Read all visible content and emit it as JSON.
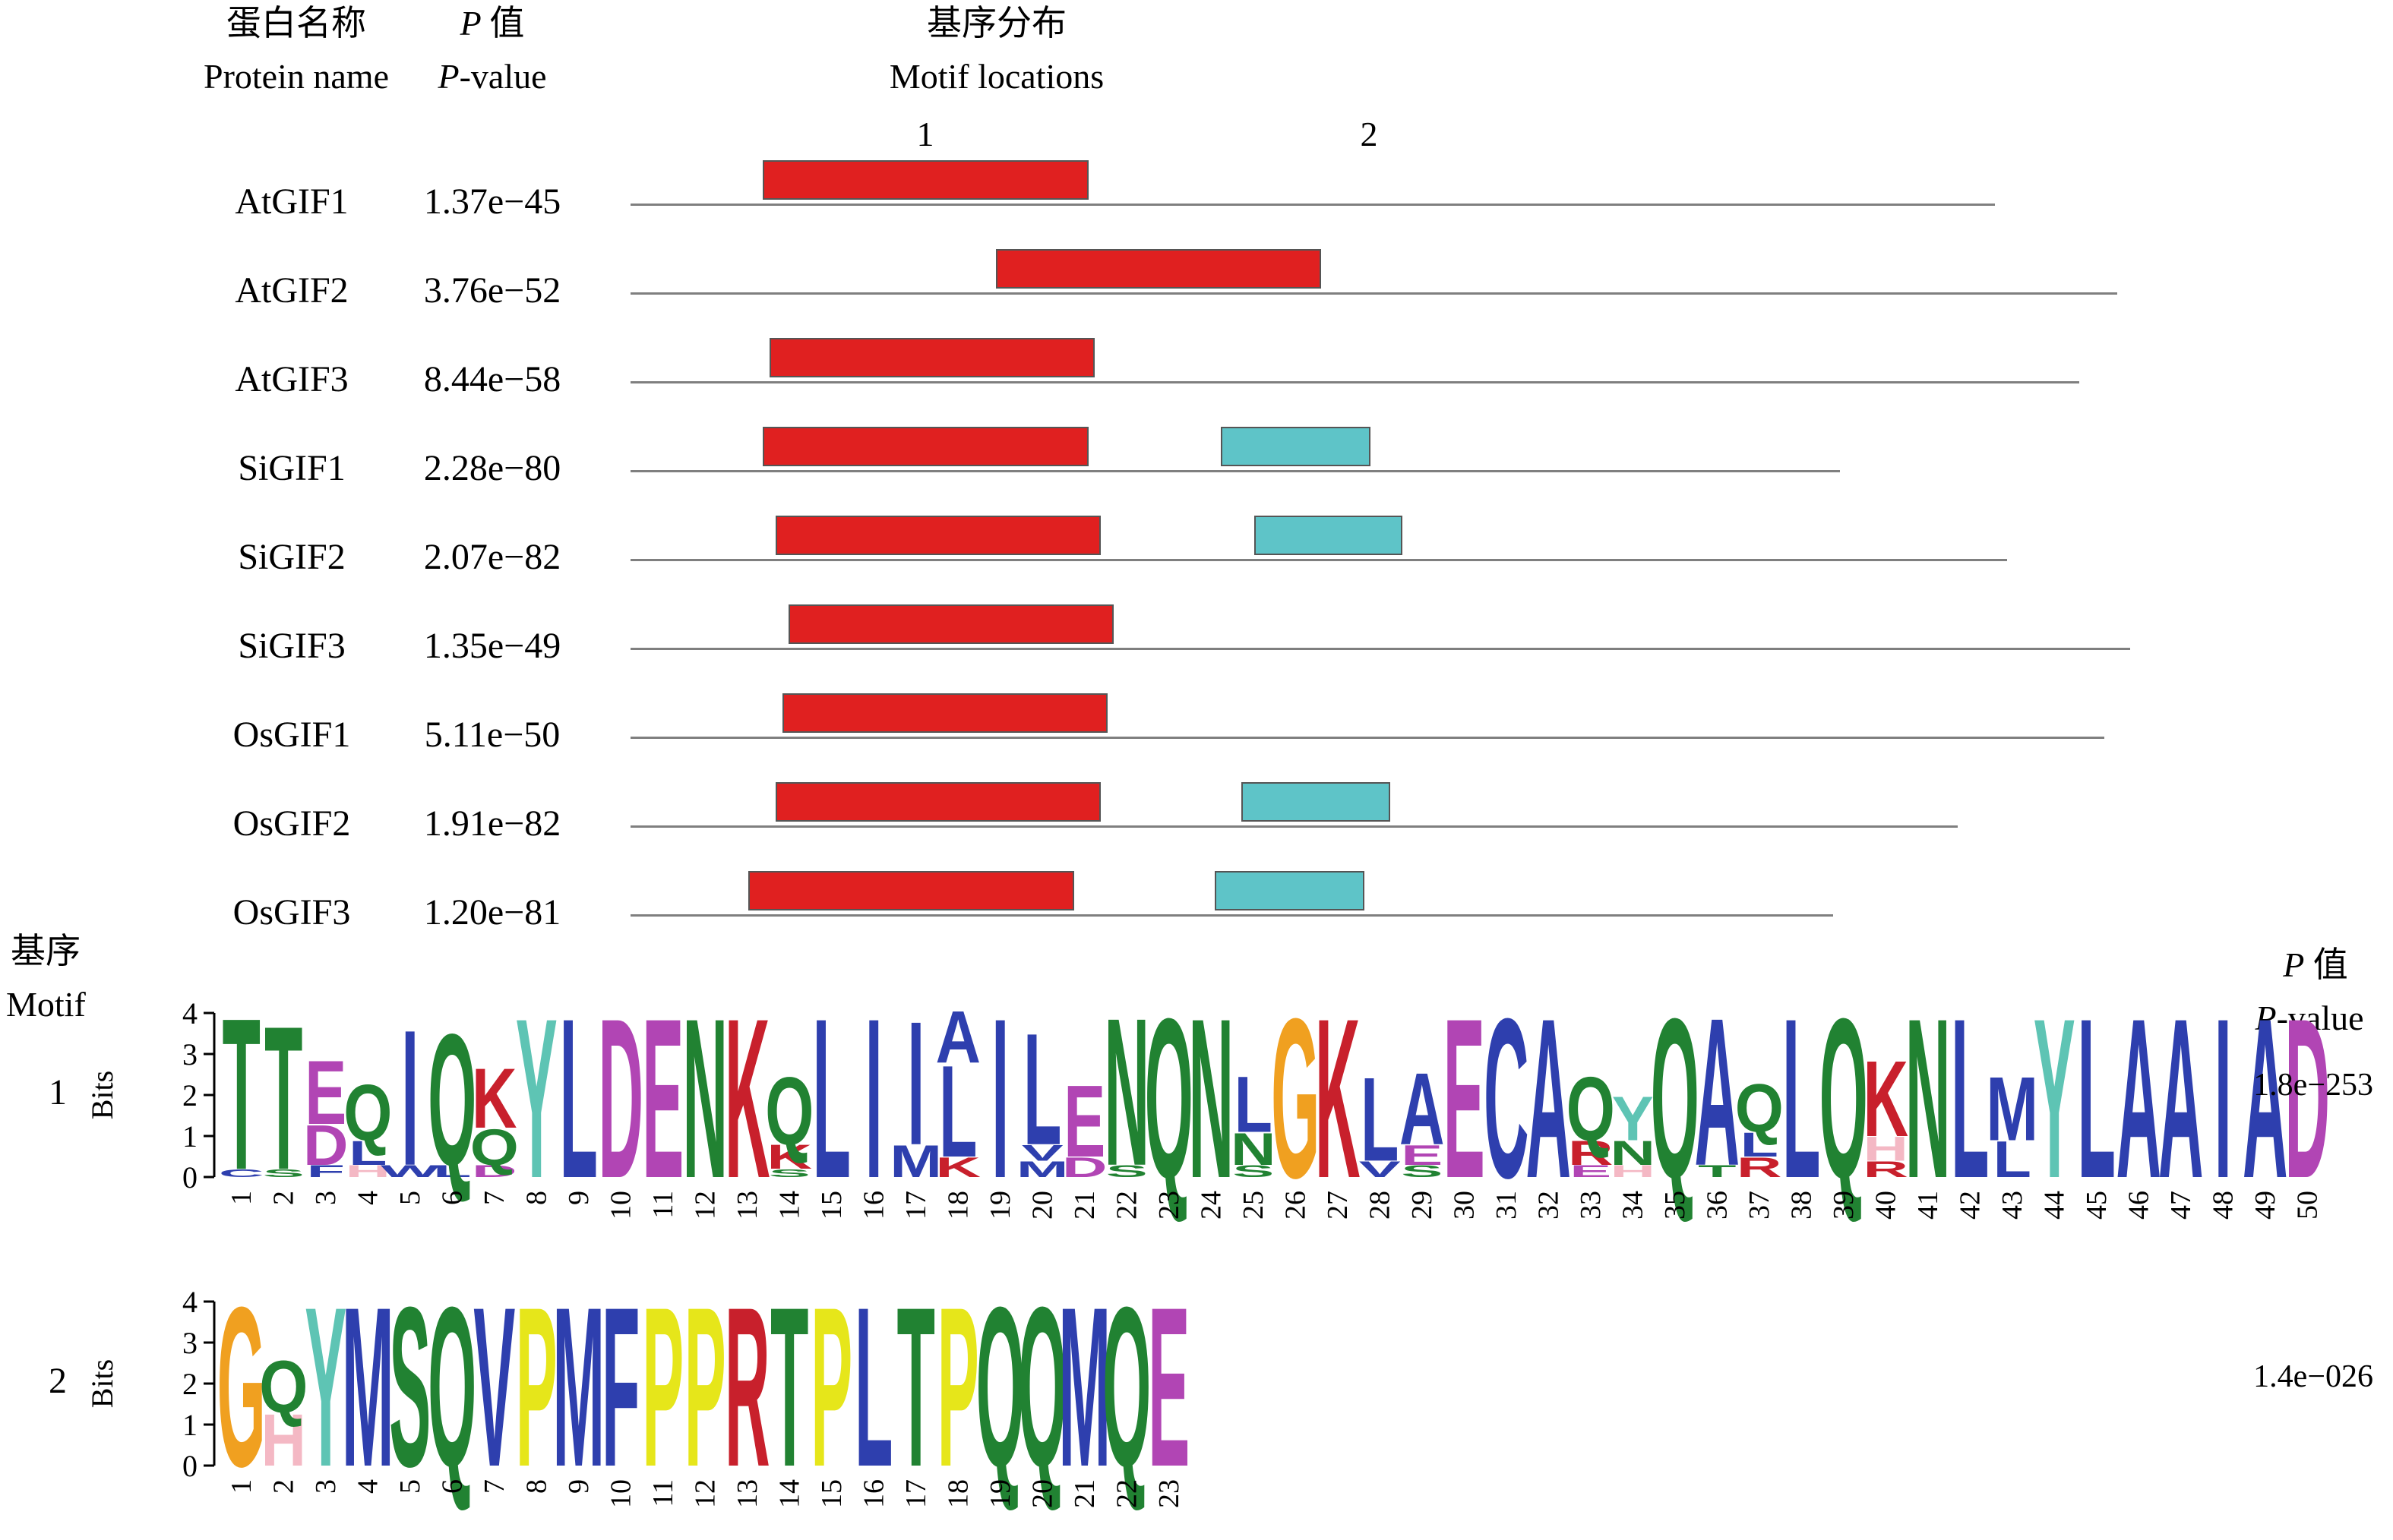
{
  "header": {
    "col_name_zh": "蛋白名称",
    "col_name_en": "Protein name",
    "col_p_zh": "P 值",
    "col_p_en": "P-value",
    "col_loc_zh": "基序分布",
    "col_loc_en": "Motif locations",
    "motif_num_1": "1",
    "motif_num_2": "2"
  },
  "colors": {
    "motif1": "#e02020",
    "motif2": "#5ec4c8",
    "line": "#7f7f7f",
    "A": "#2e3fae",
    "L": "#2e3fae",
    "I": "#2e3fae",
    "M": "#2e3fae",
    "V": "#2e3fae",
    "F": "#2e3fae",
    "W": "#2e3fae",
    "C": "#2e3fae",
    "T": "#218232",
    "S": "#218232",
    "Q": "#218232",
    "N": "#218232",
    "E": "#b145b4",
    "D": "#b145b4",
    "K": "#c8202c",
    "R": "#c8202c",
    "H": "#f4b8c4",
    "Y": "#5ec4b4",
    "G": "#f0a020",
    "P": "#e6e61a"
  },
  "proteins": [
    {
      "name": "AtGIF1",
      "p": "1.37e−45",
      "len": 0.855,
      "motifs": [
        {
          "id": 1,
          "s": 0.083,
          "e": 0.287
        }
      ]
    },
    {
      "name": "AtGIF2",
      "p": "3.76e−52",
      "len": 0.932,
      "motifs": [
        {
          "id": 1,
          "s": 0.229,
          "e": 0.433
        }
      ]
    },
    {
      "name": "AtGIF3",
      "p": "8.44e−58",
      "len": 0.908,
      "motifs": [
        {
          "id": 1,
          "s": 0.087,
          "e": 0.291
        }
      ]
    },
    {
      "name": "SiGIF1",
      "p": "2.28e−80",
      "len": 0.758,
      "motifs": [
        {
          "id": 1,
          "s": 0.083,
          "e": 0.287
        },
        {
          "id": 2,
          "s": 0.37,
          "e": 0.464
        }
      ]
    },
    {
      "name": "SiGIF2",
      "p": "2.07e−82",
      "len": 0.863,
      "motifs": [
        {
          "id": 1,
          "s": 0.091,
          "e": 0.295
        },
        {
          "id": 2,
          "s": 0.391,
          "e": 0.484
        }
      ]
    },
    {
      "name": "SiGIF3",
      "p": "1.35e−49",
      "len": 0.94,
      "motifs": [
        {
          "id": 1,
          "s": 0.099,
          "e": 0.303
        }
      ]
    },
    {
      "name": "OsGIF1",
      "p": "5.11e−50",
      "len": 0.924,
      "motifs": [
        {
          "id": 1,
          "s": 0.095,
          "e": 0.299
        }
      ]
    },
    {
      "name": "OsGIF2",
      "p": "1.91e−82",
      "len": 0.832,
      "motifs": [
        {
          "id": 1,
          "s": 0.091,
          "e": 0.295
        },
        {
          "id": 2,
          "s": 0.383,
          "e": 0.476
        }
      ]
    },
    {
      "name": "OsGIF3",
      "p": "1.20e−81",
      "len": 0.754,
      "motifs": [
        {
          "id": 1,
          "s": 0.074,
          "e": 0.278
        },
        {
          "id": 2,
          "s": 0.366,
          "e": 0.46
        }
      ]
    }
  ],
  "logo_section": {
    "motif_label_zh": "基序",
    "motif_label_en": "Motif",
    "p_label_zh": "P 值",
    "p_label_en": "P-value",
    "bits_label": "Bits",
    "y_ticks": [
      "0",
      "1",
      "2",
      "3",
      "4"
    ]
  },
  "logos": [
    {
      "id": "1",
      "p": "1.8e−253",
      "columns": [
        [
          [
            "C",
            0.2
          ],
          [
            "T",
            3.8
          ]
        ],
        [
          [
            "S",
            0.2
          ],
          [
            "T",
            3.6
          ]
        ],
        [
          [
            "F",
            0.3
          ],
          [
            "D",
            1.0
          ],
          [
            "E",
            1.6
          ]
        ],
        [
          [
            "H",
            0.3
          ],
          [
            "L",
            0.6
          ],
          [
            "Q",
            1.4
          ]
        ],
        [
          [
            "W",
            0.3
          ],
          [
            "I",
            3.4
          ]
        ],
        [
          [
            "L",
            0.3
          ],
          [
            "Q",
            3.3
          ]
        ],
        [
          [
            "D",
            0.3
          ],
          [
            "Q",
            0.9
          ],
          [
            "K",
            1.5
          ]
        ],
        [
          [
            "Y",
            4.0
          ]
        ],
        [
          [
            "L",
            4.0
          ]
        ],
        [
          [
            "D",
            4.0
          ]
        ],
        [
          [
            "E",
            4.0
          ]
        ],
        [
          [
            "N",
            4.0
          ]
        ],
        [
          [
            "K",
            4.0
          ]
        ],
        [
          [
            "S",
            0.2
          ],
          [
            "K",
            0.6
          ],
          [
            "Q",
            1.7
          ]
        ],
        [
          [
            "L",
            4.0
          ]
        ],
        [
          [
            "I",
            4.0
          ]
        ],
        [
          [
            "M",
            0.8
          ],
          [
            "I",
            3.1
          ]
        ],
        [
          [
            "K",
            0.5
          ],
          [
            "L",
            2.3
          ],
          [
            "A",
            1.3
          ]
        ],
        [
          [
            "I",
            4.0
          ]
        ],
        [
          [
            "M",
            0.4
          ],
          [
            "V",
            0.4
          ],
          [
            "L",
            2.8
          ]
        ],
        [
          [
            "D",
            0.5
          ],
          [
            "E",
            1.8
          ]
        ],
        [
          [
            "S",
            0.3
          ],
          [
            "N",
            3.7
          ]
        ],
        [
          [
            "Q",
            4.0
          ]
        ],
        [
          [
            "N",
            4.0
          ]
        ],
        [
          [
            "S",
            0.3
          ],
          [
            "N",
            0.8
          ],
          [
            "L",
            1.4
          ]
        ],
        [
          [
            "G",
            4.0
          ]
        ],
        [
          [
            "K",
            4.0
          ]
        ],
        [
          [
            "V",
            0.4
          ],
          [
            "L",
            2.1
          ]
        ],
        [
          [
            "S",
            0.3
          ],
          [
            "E",
            0.5
          ],
          [
            "A",
            1.8
          ]
        ],
        [
          [
            "E",
            4.0
          ]
        ],
        [
          [
            "C",
            4.0
          ]
        ],
        [
          [
            "A",
            4.0
          ]
        ],
        [
          [
            "E",
            0.3
          ],
          [
            "R",
            0.6
          ],
          [
            "Q",
            1.6
          ]
        ],
        [
          [
            "H",
            0.3
          ],
          [
            "N",
            0.6
          ],
          [
            "Y",
            1.1
          ]
        ],
        [
          [
            "Q",
            4.0
          ]
        ],
        [
          [
            "T",
            0.3
          ],
          [
            "A",
            3.7
          ]
        ],
        [
          [
            "R",
            0.5
          ],
          [
            "L",
            0.6
          ],
          [
            "Q",
            1.2
          ]
        ],
        [
          [
            "L",
            4.0
          ]
        ],
        [
          [
            "Q",
            4.0
          ]
        ],
        [
          [
            "R",
            0.4
          ],
          [
            "H",
            0.6
          ],
          [
            "K",
            1.9
          ]
        ],
        [
          [
            "N",
            4.0
          ]
        ],
        [
          [
            "L",
            4.0
          ]
        ],
        [
          [
            "L",
            0.9
          ],
          [
            "M",
            1.6
          ]
        ],
        [
          [
            "Y",
            4.0
          ]
        ],
        [
          [
            "L",
            4.0
          ]
        ],
        [
          [
            "A",
            4.0
          ]
        ],
        [
          [
            "A",
            4.0
          ]
        ],
        [
          [
            "I",
            4.0
          ]
        ],
        [
          [
            "A",
            4.0
          ]
        ],
        [
          [
            "D",
            4.0
          ]
        ]
      ]
    },
    {
      "id": "2",
      "p": "1.4e−026",
      "columns": [
        [
          [
            "G",
            4.0
          ]
        ],
        [
          [
            "H",
            1.3
          ],
          [
            "Q",
            1.3
          ]
        ],
        [
          [
            "Y",
            4.0
          ]
        ],
        [
          [
            "M",
            4.0
          ]
        ],
        [
          [
            "S",
            4.0
          ]
        ],
        [
          [
            "Q",
            4.0
          ]
        ],
        [
          [
            "V",
            4.0
          ]
        ],
        [
          [
            "P",
            4.0
          ]
        ],
        [
          [
            "M",
            4.0
          ]
        ],
        [
          [
            "F",
            4.0
          ]
        ],
        [
          [
            "P",
            4.0
          ]
        ],
        [
          [
            "P",
            4.0
          ]
        ],
        [
          [
            "R",
            4.0
          ]
        ],
        [
          [
            "T",
            4.0
          ]
        ],
        [
          [
            "P",
            4.0
          ]
        ],
        [
          [
            "L",
            4.0
          ]
        ],
        [
          [
            "T",
            4.0
          ]
        ],
        [
          [
            "P",
            4.0
          ]
        ],
        [
          [
            "Q",
            4.0
          ]
        ],
        [
          [
            "Q",
            4.0
          ]
        ],
        [
          [
            "M",
            4.0
          ]
        ],
        [
          [
            "Q",
            4.0
          ]
        ],
        [
          [
            "E",
            4.0
          ]
        ]
      ]
    }
  ]
}
